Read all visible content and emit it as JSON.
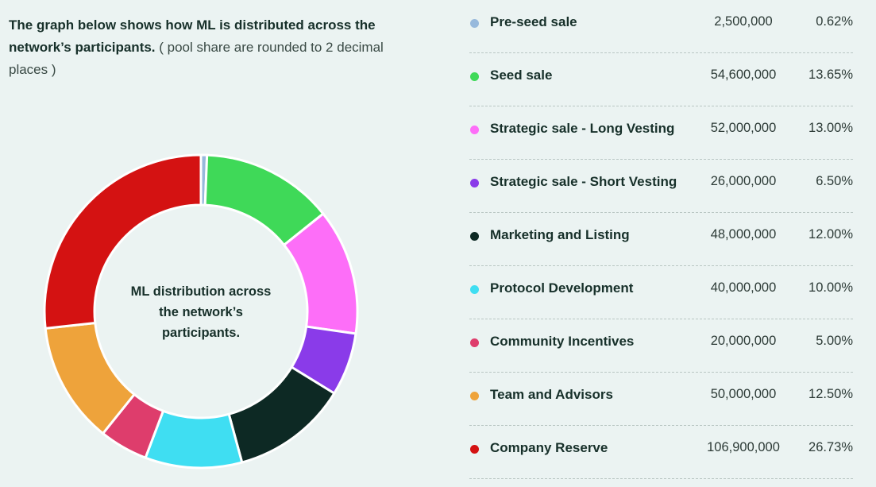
{
  "intro": {
    "bold": "The graph below shows how ML is distributed across the network’s participants.",
    "normal": " ( pool share are rounded to 2 decimal places )"
  },
  "chart_data": {
    "type": "pie",
    "donut": true,
    "center_label": "ML distribution across the network’s participants.",
    "legend_position": "right",
    "categories": [
      "Pre-seed sale",
      "Seed sale",
      "Strategic sale - Long Vesting",
      "Strategic sale - Short Vesting",
      "Marketing and Listing",
      "Protocol Development",
      "Community Incentives",
      "Team and Advisors",
      "Company Reserve"
    ],
    "amounts": [
      "2,500,000",
      "54,600,000",
      "52,000,000",
      "26,000,000",
      "48,000,000",
      "40,000,000",
      "20,000,000",
      "50,000,000",
      "106,900,000"
    ],
    "percent_labels": [
      "0.62%",
      "13.65%",
      "13.00%",
      "6.50%",
      "12.00%",
      "10.00%",
      "5.00%",
      "12.50%",
      "26.73%"
    ],
    "values": [
      0.62,
      13.65,
      13.0,
      6.5,
      12.0,
      10.0,
      5.0,
      12.5,
      26.73
    ],
    "colors": [
      "#97b9dc",
      "#3fd958",
      "#fd6ef8",
      "#8a3be9",
      "#0d2924",
      "#3fdef2",
      "#de3d6c",
      "#eea33b",
      "#d41212"
    ]
  }
}
